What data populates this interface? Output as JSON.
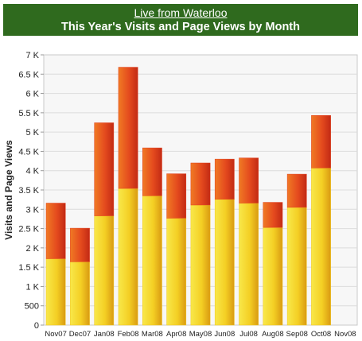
{
  "header": {
    "link_text": "Live from Waterloo",
    "title": "This Year's Visits and Page Views by Month"
  },
  "colors": {
    "header_bg": "#2f6a1e",
    "visits_fill": "#f2c61c",
    "page_views_fill": "#e2401f"
  },
  "chart_data": {
    "type": "bar",
    "stacked": true,
    "title": "This Year's Visits and Page Views by Month",
    "xlabel": "",
    "ylabel": "Visits and Page Views",
    "ylim": [
      0,
      7000
    ],
    "grid": true,
    "legend": "none",
    "categories": [
      "Nov07",
      "Dec07",
      "Jan08",
      "Feb08",
      "Mar08",
      "Apr08",
      "May08",
      "Jun08",
      "Jul08",
      "Aug08",
      "Sep08",
      "Oct08",
      "Nov08"
    ],
    "y_tick_labels": [
      "0",
      "500",
      "1 K",
      "1.5 K",
      "2 K",
      "2.5 K",
      "3 K",
      "3.5 K",
      "4 K",
      "4.5 K",
      "5 K",
      "5.5 K",
      "6 K",
      "6.5 K",
      "7 K"
    ],
    "series": [
      {
        "values": [
          1720,
          1640,
          2830,
          3540,
          3350,
          2770,
          3110,
          3260,
          3160,
          2530,
          3050,
          4070,
          0
        ]
      },
      {
        "values": [
          1440,
          870,
          2410,
          3140,
          1240,
          1150,
          1090,
          1040,
          1170,
          650,
          860,
          1360,
          0
        ]
      }
    ]
  }
}
